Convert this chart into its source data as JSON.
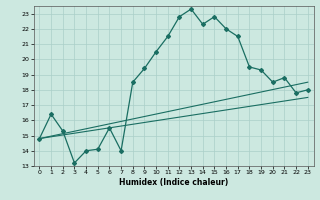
{
  "xlabel": "Humidex (Indice chaleur)",
  "xlim": [
    -0.5,
    23.5
  ],
  "ylim": [
    13,
    23.5
  ],
  "yticks": [
    13,
    14,
    15,
    16,
    17,
    18,
    19,
    20,
    21,
    22,
    23
  ],
  "xticks": [
    0,
    1,
    2,
    3,
    4,
    5,
    6,
    7,
    8,
    9,
    10,
    11,
    12,
    13,
    14,
    15,
    16,
    17,
    18,
    19,
    20,
    21,
    22,
    23
  ],
  "bg_color": "#cce8e0",
  "grid_color": "#aacfc8",
  "line_color": "#1a6e62",
  "line1_x": [
    0,
    1,
    2,
    3,
    4,
    5,
    6,
    7,
    8,
    9,
    10,
    11,
    12,
    13,
    14,
    15,
    16,
    17,
    18,
    19,
    20,
    21,
    22,
    23
  ],
  "line1_y": [
    14.8,
    16.4,
    15.3,
    13.2,
    14.0,
    14.1,
    15.5,
    14.0,
    18.5,
    19.4,
    20.5,
    21.5,
    22.8,
    23.3,
    22.3,
    22.8,
    22.0,
    21.5,
    19.5,
    19.3,
    18.5,
    18.8,
    17.8,
    18.0
  ],
  "line2_x": [
    0,
    23
  ],
  "line2_y": [
    14.8,
    18.5
  ],
  "line3_x": [
    0,
    23
  ],
  "line3_y": [
    14.8,
    17.5
  ]
}
